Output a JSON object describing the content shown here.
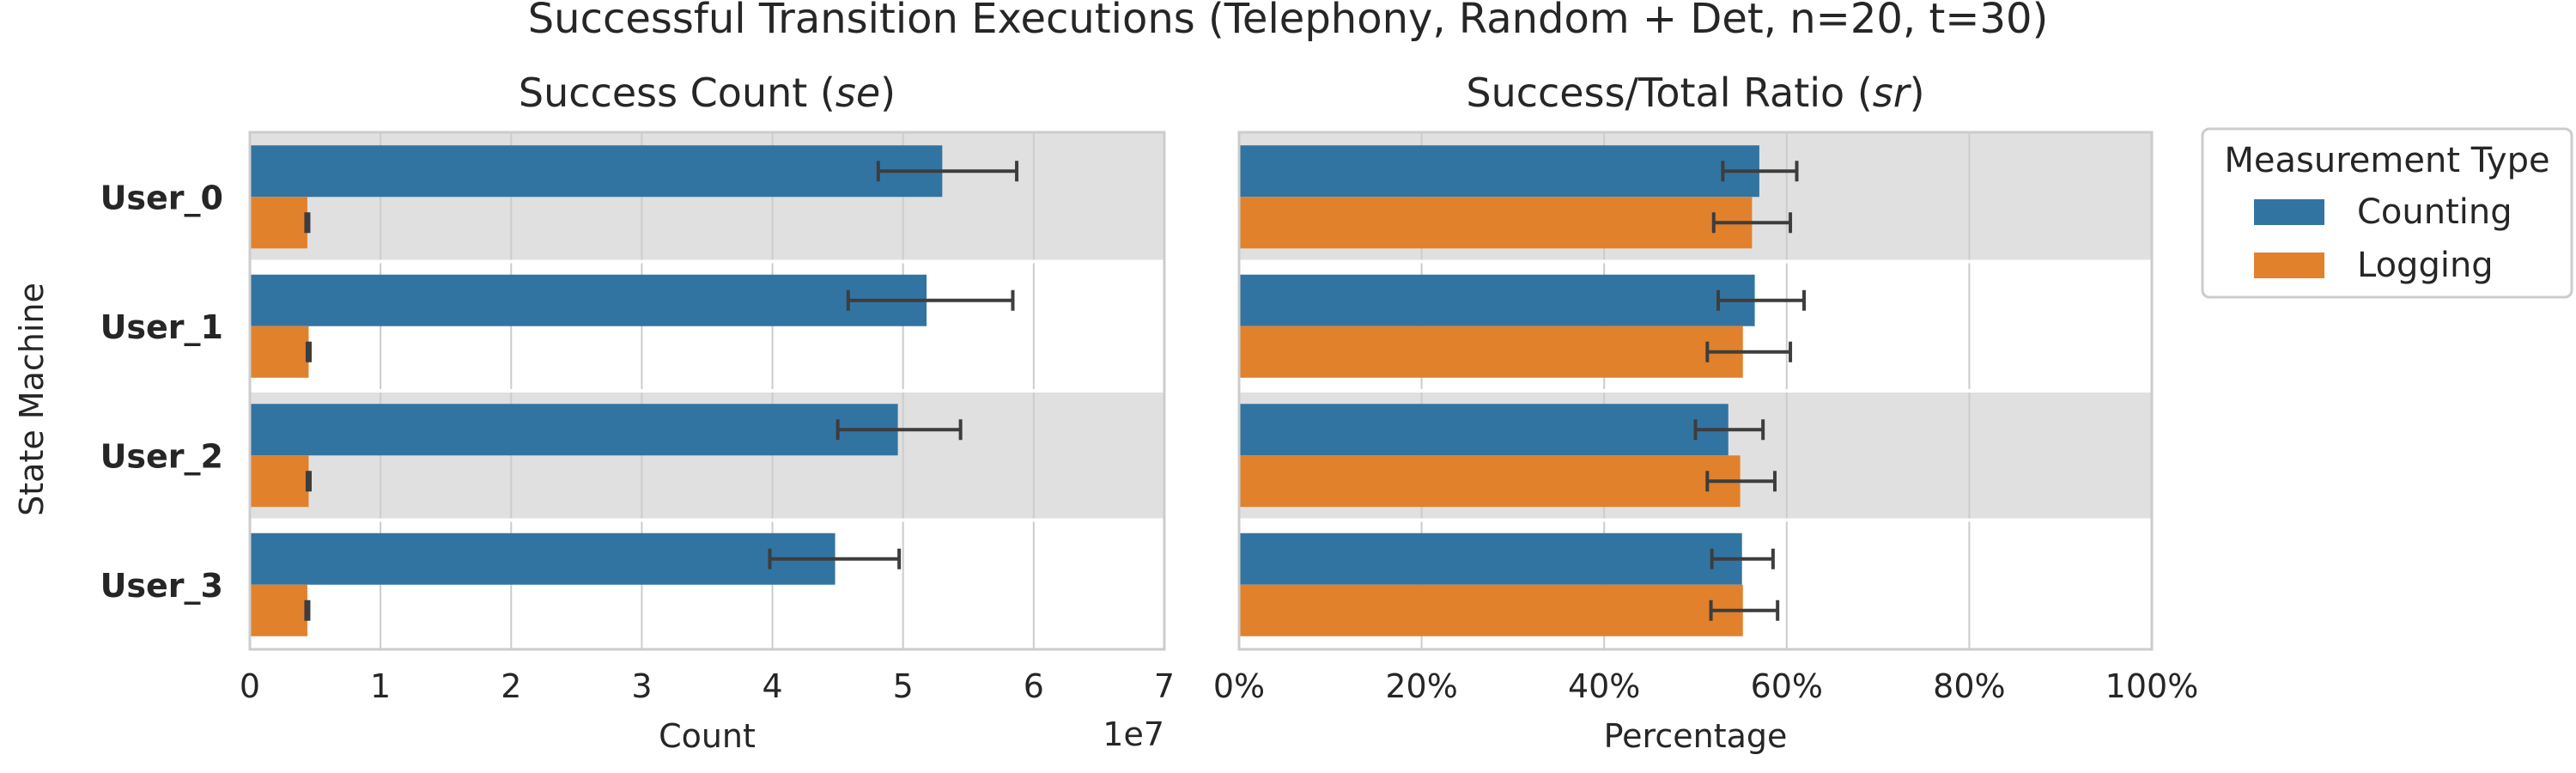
{
  "chart_data": {
    "title": "Successful Transition Executions (Telephony, Random + Det, n=20, t=30)",
    "ylabel": "State Machine",
    "categories": [
      "User_0",
      "User_1",
      "User_2",
      "User_3"
    ],
    "legend": {
      "title": "Measurement Type",
      "placement": "right",
      "entries": [
        {
          "name": "Counting",
          "color": "#3274a1"
        },
        {
          "name": "Logging",
          "color": "#e1812c"
        }
      ]
    },
    "panels": [
      {
        "type": "bar",
        "orientation": "horizontal",
        "title_text": "Success Count (",
        "title_symbol": "se",
        "title_close": ")",
        "xlabel": "Count",
        "offset_label": "1e7",
        "xlim": [
          0,
          7
        ],
        "xticks": [
          0,
          1,
          2,
          3,
          4,
          5,
          6,
          7
        ],
        "tick_labels": [
          "0",
          "1",
          "2",
          "3",
          "4",
          "5",
          "6",
          "7"
        ],
        "series": [
          {
            "name": "Counting",
            "values": [
              5.3,
              5.18,
              4.96,
              4.48
            ],
            "err_low": [
              4.81,
              4.58,
              4.5,
              3.98
            ],
            "err_high": [
              5.87,
              5.84,
              5.44,
              4.97
            ]
          },
          {
            "name": "Logging",
            "values": [
              0.44,
              0.45,
              0.45,
              0.44
            ],
            "err_low": [
              0.43,
              0.44,
              0.44,
              0.43
            ],
            "err_high": [
              0.45,
              0.46,
              0.46,
              0.45
            ]
          }
        ]
      },
      {
        "type": "bar",
        "orientation": "horizontal",
        "title_text": "Success/Total Ratio (",
        "title_symbol": "sr",
        "title_close": ")",
        "xlabel": "Percentage",
        "xlim": [
          0,
          100
        ],
        "xticks": [
          0,
          20,
          40,
          60,
          80,
          100
        ],
        "tick_labels": [
          "0%",
          "20%",
          "40%",
          "60%",
          "80%",
          "100%"
        ],
        "series": [
          {
            "name": "Counting",
            "values": [
              57,
              56.5,
              53.6,
              55.1
            ],
            "err_low": [
              53,
              52.5,
              50,
              51.8
            ],
            "err_high": [
              61.1,
              61.9,
              57.4,
              58.5
            ]
          },
          {
            "name": "Logging",
            "values": [
              56.2,
              55.2,
              54.9,
              55.2
            ],
            "err_low": [
              52,
              51.3,
              51.3,
              51.7
            ],
            "err_high": [
              60.4,
              60.4,
              58.7,
              59
            ]
          }
        ]
      }
    ]
  }
}
